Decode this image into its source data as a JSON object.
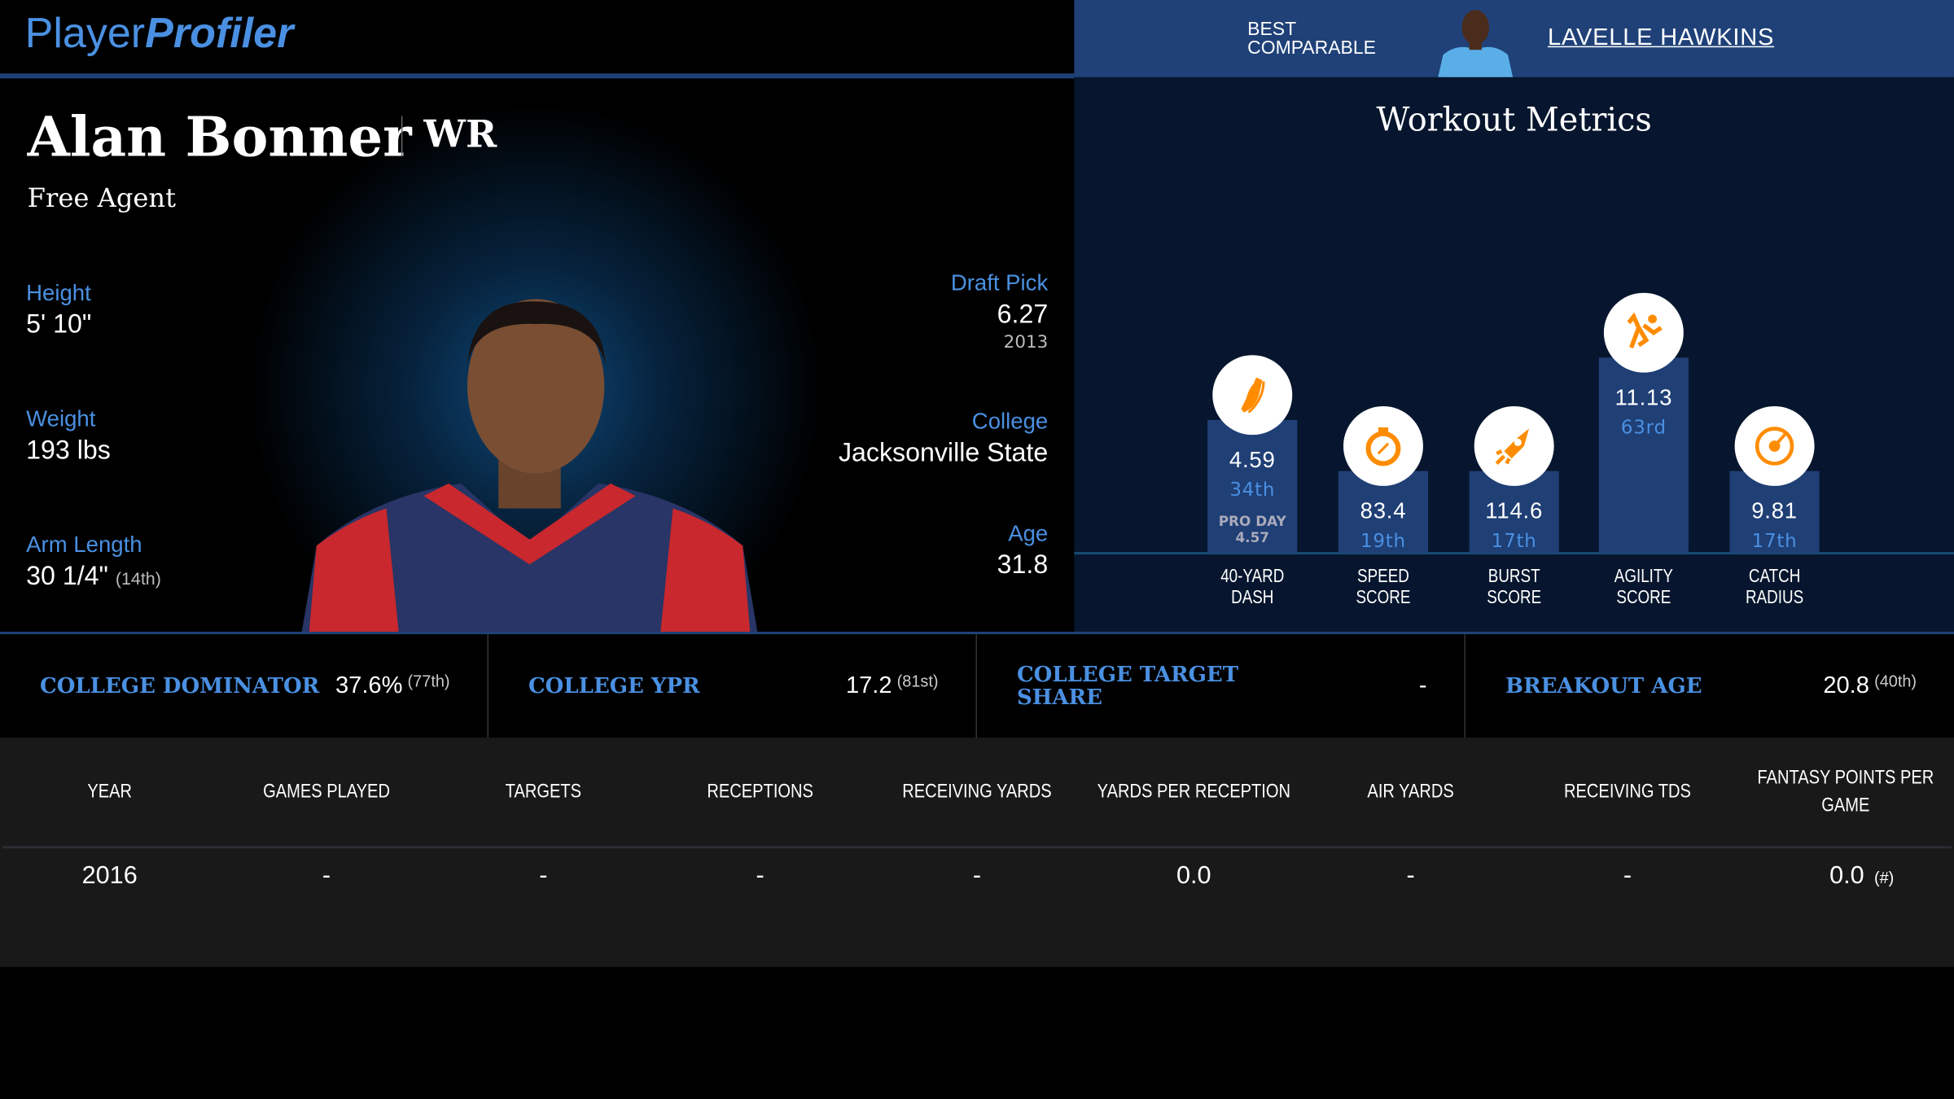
{
  "header": {
    "logo_part1": "Player",
    "logo_part2": "Profiler",
    "best_comparable_label": "BEST COMPARABLE",
    "best_comparable_name": "LAVELLE HAWKINS"
  },
  "player": {
    "name": "Alan Bonner",
    "position": "WR",
    "team": "Free Agent",
    "height_label": "Height",
    "height": "5' 10\"",
    "weight_label": "Weight",
    "weight": "193 lbs",
    "arm_label": "Arm Length",
    "arm": "30 1/4\"",
    "arm_rank": "(14th)",
    "draft_label": "Draft Pick",
    "draft": "6.27",
    "draft_year": "2013",
    "college_label": "College",
    "college": "Jacksonville State",
    "age_label": "Age",
    "age": "31.8"
  },
  "workout": {
    "title": "Workout Metrics",
    "metrics": [
      {
        "label1": "40-YARD",
        "label2": "DASH",
        "value": "4.59",
        "pct": "34th",
        "pro_day_label": "PRO DAY",
        "pro_day": "4.57",
        "icon": "shoe-icon",
        "percentile": 34
      },
      {
        "label1": "SPEED",
        "label2": "SCORE",
        "value": "83.4",
        "pct": "19th",
        "icon": "stopwatch-icon",
        "percentile": 19
      },
      {
        "label1": "BURST",
        "label2": "SCORE",
        "value": "114.6",
        "pct": "17th",
        "icon": "rocket-icon",
        "percentile": 17
      },
      {
        "label1": "AGILITY",
        "label2": "SCORE",
        "value": "11.13",
        "pct": "63rd",
        "icon": "runner-icon",
        "percentile": 63
      },
      {
        "label1": "CATCH",
        "label2": "RADIUS",
        "value": "9.81",
        "pct": "17th",
        "icon": "target-icon",
        "percentile": 17
      }
    ]
  },
  "college_stats": [
    {
      "label": "COLLEGE DOMINATOR",
      "value": "37.6%",
      "rank": "(77th)"
    },
    {
      "label": "COLLEGE YPR",
      "value": "17.2",
      "rank": "(81st)"
    },
    {
      "label": "COLLEGE TARGET SHARE",
      "value": "-",
      "rank": ""
    },
    {
      "label": "BREAKOUT AGE",
      "value": "20.8",
      "rank": "(40th)"
    }
  ],
  "table": {
    "headers": [
      "YEAR",
      "GAMES PLAYED",
      "TARGETS",
      "RECEPTIONS",
      "RECEIVING YARDS",
      "YARDS PER RECEPTION",
      "AIR YARDS",
      "RECEIVING TDS",
      "FANTASY POINTS PER GAME"
    ],
    "rows": [
      [
        "2016",
        "-",
        "-",
        "-",
        "-",
        "0.0",
        "-",
        "-",
        "0.0"
      ]
    ],
    "fp_note": "(#)"
  },
  "colors": {
    "accent": "#4a90e2",
    "header_blue": "#1f4178",
    "bar": "#1f3f75",
    "icon": "#ff8c00",
    "panel": "#07162e"
  }
}
